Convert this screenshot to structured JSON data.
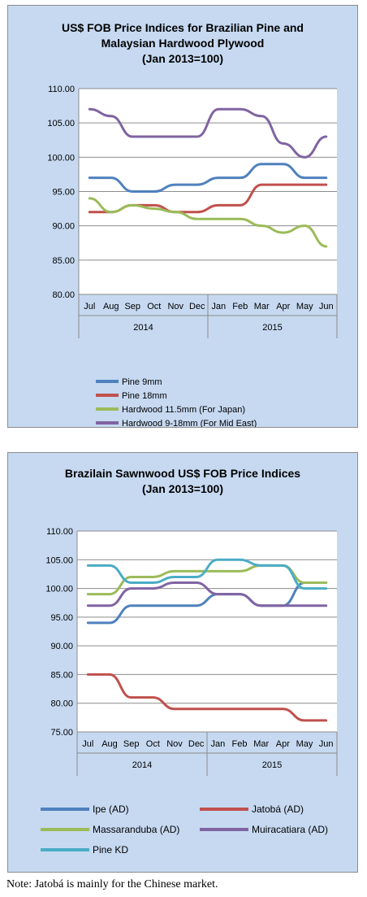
{
  "chart_data": [
    {
      "type": "line",
      "title": "US$ FOB Price Indices for Brazilian Pine and Malaysian Hardwood Plywood",
      "subtitle": "(Jan 2013=100)",
      "categories": [
        "Jul",
        "Aug",
        "Sep",
        "Oct",
        "Nov",
        "Dec",
        "Jan",
        "Feb",
        "Mar",
        "Apr",
        "May",
        "Jun"
      ],
      "year_groups": [
        {
          "label": "2014",
          "span": 6
        },
        {
          "label": "2015",
          "span": 6
        }
      ],
      "ylim": [
        80,
        110
      ],
      "yticks": [
        "80.00",
        "85.00",
        "90.00",
        "95.00",
        "100.00",
        "105.00",
        "110.00"
      ],
      "grid": true,
      "legend_position": "bottom",
      "series": [
        {
          "name": "Pine 9mm",
          "color": "#4f81bd",
          "values": [
            97,
            97,
            95,
            95,
            96,
            96,
            97,
            97,
            99,
            99,
            97,
            97
          ]
        },
        {
          "name": "Pine 18mm",
          "color": "#c0504d",
          "values": [
            92,
            92,
            93,
            93,
            92,
            92,
            93,
            93,
            96,
            96,
            96,
            96
          ]
        },
        {
          "name": "Hardwood 11.5mm (For Japan)",
          "color": "#9bbb59",
          "values": [
            94,
            92,
            93,
            92.5,
            92,
            91,
            91,
            91,
            90,
            89,
            90,
            87
          ]
        },
        {
          "name": "Hardwood 9-18mm (For Mid East)",
          "color": "#8064a2",
          "values": [
            107,
            106,
            103,
            103,
            103,
            103,
            107,
            107,
            106,
            102,
            100,
            103
          ]
        }
      ]
    },
    {
      "type": "line",
      "title": "Brazilain Sawnwood US$ FOB Price Indices",
      "subtitle": "(Jan 2013=100)",
      "categories": [
        "Jul",
        "Aug",
        "Sep",
        "Oct",
        "Nov",
        "Dec",
        "Jan",
        "Feb",
        "Mar",
        "Apr",
        "May",
        "Jun"
      ],
      "year_groups": [
        {
          "label": "2014",
          "span": 6
        },
        {
          "label": "2015",
          "span": 6
        }
      ],
      "ylim": [
        75,
        110
      ],
      "yticks": [
        "75.00",
        "80.00",
        "85.00",
        "90.00",
        "95.00",
        "100.00",
        "105.00",
        "110.00"
      ],
      "grid": true,
      "legend_position": "bottom",
      "series": [
        {
          "name": "Ipe (AD)",
          "color": "#4f81bd",
          "values": [
            94,
            94,
            97,
            97,
            97,
            97,
            99,
            99,
            97,
            97,
            101,
            101
          ]
        },
        {
          "name": "Jatobá (AD)",
          "color": "#c0504d",
          "values": [
            85,
            85,
            81,
            81,
            79,
            79,
            79,
            79,
            79,
            79,
            77,
            77
          ]
        },
        {
          "name": "Massaranduba (AD)",
          "color": "#9bbb59",
          "values": [
            99,
            99,
            102,
            102,
            103,
            103,
            103,
            103,
            104,
            104,
            101,
            101
          ]
        },
        {
          "name": "Muiracatiara (AD)",
          "color": "#8064a2",
          "values": [
            97,
            97,
            100,
            100,
            101,
            101,
            99,
            99,
            97,
            97,
            97,
            97
          ]
        },
        {
          "name": "Pine KD",
          "color": "#4bacc6",
          "values": [
            104,
            104,
            101,
            101,
            102,
            102,
            105,
            105,
            104,
            104,
            100,
            100
          ]
        }
      ]
    }
  ],
  "note": "Note: Jatobá is mainly for the Chinese market."
}
